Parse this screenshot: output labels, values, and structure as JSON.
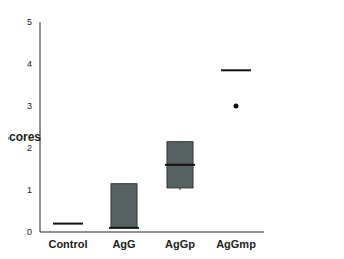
{
  "chart_data": {
    "type": "box",
    "ylabel": "Scores",
    "categories": [
      "Control",
      "AgG",
      "AgGp",
      "AgGmp"
    ],
    "min": [
      0.2,
      0.1,
      1.0,
      3.85
    ],
    "q1": [
      0.2,
      0.1,
      1.05,
      3.85
    ],
    "median": [
      0.2,
      0.1,
      1.6,
      3.85
    ],
    "q3": [
      0.2,
      1.15,
      2.15,
      3.85
    ],
    "max": [
      0.2,
      1.15,
      2.15,
      3.85
    ],
    "outliers": [
      [],
      [],
      [],
      [
        3.0
      ]
    ],
    "color": "#566161",
    "ylim": [
      0,
      5
    ],
    "yticks": [
      0,
      1,
      2,
      3,
      4,
      5
    ],
    "grid": false
  }
}
